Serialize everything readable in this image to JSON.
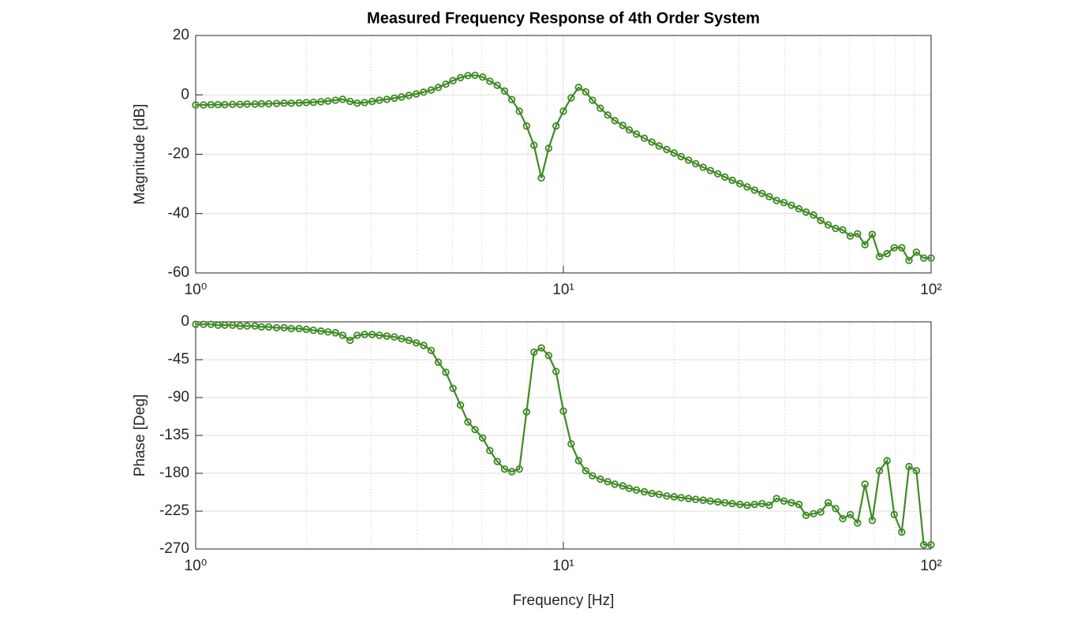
{
  "chart_data": [
    {
      "type": "line",
      "title": "Measured Frequency Response of 4th Order System",
      "ylabel": "Magnitude [dB]",
      "xscale": "log",
      "grid": true,
      "minor_grid": true,
      "xlim": [
        1,
        100
      ],
      "xticks": [
        {
          "value": 1,
          "label": "10⁰"
        },
        {
          "value": 10,
          "label": "10¹"
        },
        {
          "value": 100,
          "label": "10²"
        }
      ],
      "ylim": [
        -60,
        20
      ],
      "yticks": [
        -60,
        -40,
        -20,
        0,
        20
      ],
      "x": [
        1.0,
        1.05,
        1.1,
        1.15,
        1.2,
        1.26,
        1.32,
        1.38,
        1.45,
        1.51,
        1.58,
        1.66,
        1.74,
        1.82,
        1.91,
        2.0,
        2.09,
        2.19,
        2.29,
        2.4,
        2.51,
        2.63,
        2.75,
        2.88,
        3.02,
        3.16,
        3.31,
        3.47,
        3.63,
        3.8,
        3.98,
        4.17,
        4.37,
        4.57,
        4.79,
        5.01,
        5.25,
        5.5,
        5.75,
        6.03,
        6.31,
        6.61,
        6.92,
        7.24,
        7.59,
        7.94,
        8.32,
        8.71,
        9.12,
        9.55,
        10.0,
        10.5,
        11.0,
        11.5,
        12.0,
        12.6,
        13.2,
        13.8,
        14.5,
        15.1,
        15.8,
        16.6,
        17.4,
        18.2,
        19.1,
        20.0,
        20.9,
        21.9,
        22.9,
        24.0,
        25.1,
        26.3,
        27.5,
        28.8,
        30.2,
        31.6,
        33.1,
        34.7,
        36.3,
        38.0,
        39.8,
        41.7,
        43.7,
        45.7,
        47.9,
        50.1,
        52.5,
        55.0,
        57.5,
        60.3,
        63.1,
        66.1,
        69.2,
        72.4,
        75.9,
        79.4,
        83.2,
        87.1,
        91.2,
        95.5,
        100
      ],
      "series": [
        {
          "color": "#3f8a24",
          "values": [
            -3.4,
            -3.4,
            -3.3,
            -3.3,
            -3.3,
            -3.2,
            -3.2,
            -3.1,
            -3.1,
            -3.0,
            -3.0,
            -2.9,
            -2.8,
            -2.8,
            -2.7,
            -2.6,
            -2.5,
            -2.3,
            -2.1,
            -1.8,
            -1.5,
            -2.2,
            -2.8,
            -2.6,
            -2.2,
            -1.8,
            -1.5,
            -1.1,
            -0.7,
            -0.2,
            0.3,
            0.9,
            1.6,
            2.5,
            3.6,
            4.8,
            5.8,
            6.5,
            6.6,
            6.0,
            4.6,
            3.2,
            1.3,
            -1.6,
            -5.5,
            -10.5,
            -17,
            -28,
            -18,
            -10.5,
            -5.5,
            -1.0,
            2.5,
            1.0,
            -1.8,
            -4.5,
            -6.8,
            -8.7,
            -10.3,
            -11.8,
            -13.2,
            -14.6,
            -15.9,
            -17.2,
            -18.4,
            -19.6,
            -20.8,
            -22.0,
            -23.2,
            -24.4,
            -25.5,
            -26.6,
            -27.7,
            -28.8,
            -29.9,
            -31.0,
            -32.1,
            -33.2,
            -34.3,
            -35.6,
            -36.3,
            -37.2,
            -38.4,
            -39.5,
            -40.5,
            -42.3,
            -43.8,
            -45.0,
            -45.5,
            -47.6,
            -46.8,
            -50.5,
            -47.0,
            -54.5,
            -53.5,
            -51.5,
            -51.5,
            -55.8,
            -53.0,
            -55.0,
            -55.0
          ]
        }
      ]
    },
    {
      "type": "line",
      "xlabel": "Frequency [Hz]",
      "ylabel": "Phase [Deg]",
      "xscale": "log",
      "grid": true,
      "minor_grid": true,
      "xlim": [
        1,
        100
      ],
      "xticks": [
        {
          "value": 1,
          "label": "10⁰"
        },
        {
          "value": 10,
          "label": "10¹"
        },
        {
          "value": 100,
          "label": "10²"
        }
      ],
      "ylim": [
        -270,
        0
      ],
      "yticks": [
        -270,
        -225,
        -180,
        -135,
        -90,
        -45,
        0
      ],
      "x": [
        1.0,
        1.05,
        1.1,
        1.15,
        1.2,
        1.26,
        1.32,
        1.38,
        1.45,
        1.51,
        1.58,
        1.66,
        1.74,
        1.82,
        1.91,
        2.0,
        2.09,
        2.19,
        2.29,
        2.4,
        2.51,
        2.63,
        2.75,
        2.88,
        3.02,
        3.16,
        3.31,
        3.47,
        3.63,
        3.8,
        3.98,
        4.17,
        4.37,
        4.57,
        4.79,
        5.01,
        5.25,
        5.5,
        5.75,
        6.03,
        6.31,
        6.61,
        6.92,
        7.24,
        7.59,
        7.94,
        8.32,
        8.71,
        9.12,
        9.55,
        10.0,
        10.5,
        11.0,
        11.5,
        12.0,
        12.6,
        13.2,
        13.8,
        14.5,
        15.1,
        15.8,
        16.6,
        17.4,
        18.2,
        19.1,
        20.0,
        20.9,
        21.9,
        22.9,
        24.0,
        25.1,
        26.3,
        27.5,
        28.8,
        30.2,
        31.6,
        33.1,
        34.7,
        36.3,
        38.0,
        39.8,
        41.7,
        43.7,
        45.7,
        47.9,
        50.1,
        52.5,
        55.0,
        57.5,
        60.3,
        63.1,
        66.1,
        69.2,
        72.4,
        75.9,
        79.4,
        83.2,
        87.1,
        91.2,
        95.5,
        100
      ],
      "series": [
        {
          "color": "#3f8a24",
          "values": [
            -3,
            -3,
            -3,
            -4,
            -4,
            -4,
            -5,
            -5,
            -5,
            -6,
            -6,
            -7,
            -7,
            -8,
            -8,
            -9,
            -10,
            -11,
            -12,
            -13,
            -16,
            -22,
            -16,
            -15,
            -15,
            -16,
            -17,
            -18,
            -20,
            -22,
            -25,
            -28,
            -34,
            -48,
            -60,
            -79,
            -99,
            -119,
            -128,
            -138,
            -153,
            -166,
            -175,
            -178,
            -175,
            -107,
            -36,
            -31,
            -40,
            -59,
            -106,
            -145,
            -165,
            -177,
            -183,
            -187,
            -190,
            -193,
            -195,
            -198,
            -200,
            -202,
            -204,
            -205,
            -207,
            -208,
            -209,
            -210,
            -211,
            -212,
            -213,
            -214,
            -215,
            -216,
            -217,
            -218,
            -217,
            -216,
            -218,
            -210,
            -213,
            -215,
            -217,
            -230,
            -228,
            -226,
            -215,
            -222,
            -234,
            -229,
            -239,
            -193,
            -236,
            -177,
            -165,
            -229,
            -250,
            -172,
            -177,
            -265,
            -265
          ]
        }
      ]
    }
  ]
}
